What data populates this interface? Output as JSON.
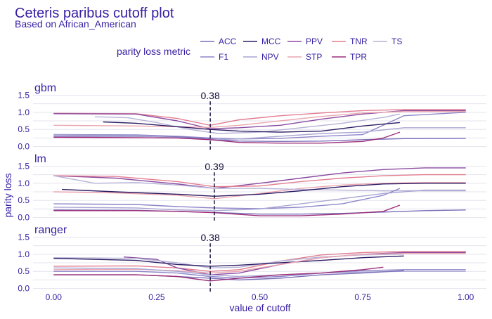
{
  "title": "Ceteris paribus cutoff plot",
  "subtitle": "Based on African_American",
  "chart_data": {
    "type": "line",
    "title": "Ceteris paribus cutoff plot",
    "subtitle": "Based on African_American",
    "xlabel": "value of cutoff",
    "ylabel": "parity loss",
    "xlim": [
      -0.05,
      1.05
    ],
    "ylim": [
      -0.05,
      1.55
    ],
    "x_ticks": [
      "0.00",
      "0.25",
      "0.50",
      "0.75",
      "1.00"
    ],
    "y_ticks": [
      "0.0",
      "0.5",
      "1.0",
      "1.5"
    ],
    "legend": {
      "title": "parity loss metric",
      "placement": "top",
      "entries": [
        "ACC",
        "MCC",
        "PPV",
        "TNR",
        "TS",
        "F1",
        "NPV",
        "STP",
        "TPR"
      ]
    },
    "grid": true,
    "metric_colors": {
      "ACC": "#7a6fb8",
      "MCC": "#2b1b63",
      "PPV": "#8a4aa0",
      "TNR": "#e27d90",
      "TS": "#b5b3d6",
      "F1": "#8d85c9",
      "NPV": "#a9a6d3",
      "STP": "#eba6b0",
      "TPR": "#9e2f7a"
    },
    "panels": [
      {
        "name": "gbm",
        "cutoff_label": "0.38",
        "cutoff": 0.38,
        "series": [
          {
            "name": "TNR",
            "x": [
              0,
              0.2,
              0.3,
              0.38,
              0.45,
              0.55,
              0.65,
              0.75,
              0.85,
              1.0
            ],
            "values": [
              0.97,
              0.96,
              0.82,
              0.62,
              0.78,
              0.9,
              0.98,
              1.05,
              1.08,
              1.08
            ]
          },
          {
            "name": "PPV",
            "x": [
              0,
              0.2,
              0.3,
              0.38,
              0.45,
              0.55,
              0.65,
              0.75,
              0.85,
              1.0
            ],
            "values": [
              0.96,
              0.95,
              0.75,
              0.52,
              0.55,
              0.62,
              0.8,
              0.95,
              1.05,
              1.05
            ]
          },
          {
            "name": "STP",
            "x": [
              0,
              0.2,
              0.3,
              0.38,
              0.45,
              0.55,
              0.65,
              0.75,
              0.85,
              1.0
            ],
            "values": [
              0.62,
              0.6,
              0.58,
              0.56,
              0.62,
              0.75,
              0.88,
              0.98,
              1.02,
              1.02
            ]
          },
          {
            "name": "F1",
            "x": [
              0,
              0.2,
              0.3,
              0.38,
              0.45,
              0.55,
              0.65,
              0.75,
              0.85,
              1.0
            ],
            "values": [
              0.35,
              0.34,
              0.3,
              0.25,
              0.22,
              0.24,
              0.3,
              0.35,
              0.9,
              1.0
            ]
          },
          {
            "name": "TS",
            "x": [
              0.1,
              0.18,
              0.25,
              0.33,
              0.4,
              0.5,
              0.6,
              0.7,
              0.8,
              0.84
            ],
            "values": [
              0.87,
              0.84,
              0.7,
              0.5,
              0.38,
              0.42,
              0.55,
              0.68,
              0.85,
              0.95
            ]
          },
          {
            "name": "MCC",
            "x": [
              0.12,
              0.2,
              0.3,
              0.38,
              0.45,
              0.55,
              0.65,
              0.75,
              0.84
            ],
            "values": [
              0.72,
              0.68,
              0.58,
              0.5,
              0.45,
              0.42,
              0.45,
              0.6,
              0.7
            ]
          },
          {
            "name": "ACC",
            "x": [
              0,
              0.2,
              0.3,
              0.38,
              0.45,
              0.55,
              0.65,
              0.75,
              0.85,
              1.0
            ],
            "values": [
              0.3,
              0.3,
              0.28,
              0.22,
              0.16,
              0.15,
              0.16,
              0.2,
              0.23,
              0.24
            ]
          },
          {
            "name": "NPV",
            "x": [
              0,
              0.2,
              0.3,
              0.38,
              0.45,
              0.55,
              0.65,
              0.75,
              0.85,
              1.0
            ],
            "values": [
              0.34,
              0.32,
              0.26,
              0.2,
              0.22,
              0.3,
              0.38,
              0.42,
              0.55,
              0.55
            ]
          },
          {
            "name": "TPR",
            "x": [
              0,
              0.2,
              0.3,
              0.38,
              0.45,
              0.55,
              0.65,
              0.75,
              0.8,
              0.84
            ],
            "values": [
              0.27,
              0.26,
              0.25,
              0.2,
              0.12,
              0.1,
              0.1,
              0.15,
              0.25,
              0.42
            ]
          }
        ]
      },
      {
        "name": "lm",
        "cutoff_label": "0.39",
        "cutoff": 0.39,
        "series": [
          {
            "name": "PPV",
            "x": [
              0,
              0.15,
              0.3,
              0.39,
              0.5,
              0.6,
              0.7,
              0.8,
              0.9,
              1.0
            ],
            "values": [
              1.22,
              1.15,
              0.98,
              0.85,
              1.0,
              1.15,
              1.3,
              1.4,
              1.45,
              1.45
            ]
          },
          {
            "name": "TNR",
            "x": [
              0,
              0.15,
              0.3,
              0.39,
              0.5,
              0.6,
              0.7,
              0.8,
              0.9,
              1.0
            ],
            "values": [
              1.22,
              1.2,
              1.05,
              0.9,
              0.92,
              1.05,
              1.15,
              1.22,
              1.25,
              1.25
            ]
          },
          {
            "name": "STP",
            "x": [
              0,
              0.15,
              0.3,
              0.39,
              0.5,
              0.6,
              0.7,
              0.8,
              0.9,
              1.0
            ],
            "values": [
              0.75,
              0.72,
              0.65,
              0.55,
              0.7,
              0.85,
              0.95,
              1.0,
              1.02,
              1.02
            ]
          },
          {
            "name": "TS",
            "x": [
              0,
              0.1,
              0.2,
              0.3,
              0.39,
              0.5,
              0.6,
              0.7,
              0.8,
              1.0
            ],
            "values": [
              1.22,
              1.0,
              1.02,
              0.95,
              0.85,
              0.85,
              0.82,
              0.8,
              0.78,
              0.78
            ]
          },
          {
            "name": "MCC",
            "x": [
              0.02,
              0.15,
              0.3,
              0.39,
              0.5,
              0.6,
              0.7,
              0.8,
              0.9,
              1.0
            ],
            "values": [
              0.82,
              0.75,
              0.68,
              0.62,
              0.68,
              0.78,
              0.9,
              0.98,
              1.0,
              1.0
            ]
          },
          {
            "name": "F1",
            "x": [
              0,
              0.2,
              0.3,
              0.39,
              0.5,
              0.6,
              0.7,
              0.8,
              0.84
            ],
            "values": [
              0.4,
              0.38,
              0.32,
              0.28,
              0.26,
              0.3,
              0.4,
              0.65,
              0.85
            ]
          },
          {
            "name": "NPV",
            "x": [
              0,
              0.2,
              0.3,
              0.39,
              0.5,
              0.6,
              0.7,
              0.8,
              0.9,
              1.0
            ],
            "values": [
              0.3,
              0.28,
              0.22,
              0.2,
              0.25,
              0.4,
              0.55,
              0.7,
              0.8,
              0.8
            ]
          },
          {
            "name": "ACC",
            "x": [
              0,
              0.2,
              0.3,
              0.39,
              0.5,
              0.6,
              0.7,
              0.8,
              0.9,
              1.0
            ],
            "values": [
              0.22,
              0.21,
              0.18,
              0.15,
              0.1,
              0.1,
              0.12,
              0.16,
              0.2,
              0.22
            ]
          },
          {
            "name": "TPR",
            "x": [
              0,
              0.2,
              0.3,
              0.39,
              0.5,
              0.6,
              0.7,
              0.8,
              0.84
            ],
            "values": [
              0.2,
              0.2,
              0.18,
              0.14,
              0.05,
              0.05,
              0.1,
              0.18,
              0.36
            ]
          }
        ]
      },
      {
        "name": "ranger",
        "cutoff_label": "0.38",
        "cutoff": 0.38,
        "series": [
          {
            "name": "TNR",
            "x": [
              0,
              0.2,
              0.3,
              0.38,
              0.45,
              0.55,
              0.65,
              0.75,
              0.85,
              1.0
            ],
            "values": [
              0.65,
              0.66,
              0.6,
              0.5,
              0.55,
              0.8,
              0.98,
              1.05,
              1.08,
              1.08
            ]
          },
          {
            "name": "PPV",
            "x": [
              0.17,
              0.25,
              0.3,
              0.38,
              0.45,
              0.55,
              0.65,
              0.75,
              0.85,
              1.0
            ],
            "values": [
              0.92,
              0.85,
              0.6,
              0.4,
              0.45,
              0.7,
              0.9,
              1.0,
              1.05,
              1.05
            ]
          },
          {
            "name": "TS",
            "x": [
              0,
              0.2,
              0.3,
              0.38,
              0.45,
              0.55,
              0.65,
              0.75,
              0.85
            ],
            "values": [
              0.9,
              0.88,
              0.75,
              0.6,
              0.62,
              0.8,
              0.92,
              0.98,
              1.0
            ]
          },
          {
            "name": "MCC",
            "x": [
              0,
              0.2,
              0.3,
              0.38,
              0.45,
              0.55,
              0.65,
              0.75,
              0.85
            ],
            "values": [
              0.88,
              0.82,
              0.7,
              0.65,
              0.68,
              0.75,
              0.82,
              0.9,
              0.95
            ]
          },
          {
            "name": "STP",
            "x": [
              0,
              0.2,
              0.3,
              0.38,
              0.45,
              0.55,
              0.65,
              0.75,
              0.85,
              1.0
            ],
            "values": [
              0.55,
              0.56,
              0.52,
              0.45,
              0.5,
              0.7,
              0.9,
              1.0,
              1.02,
              1.02
            ]
          },
          {
            "name": "F1",
            "x": [
              0,
              0.2,
              0.3,
              0.38,
              0.45,
              0.55,
              0.65,
              0.75,
              0.85,
              1.0
            ],
            "values": [
              0.5,
              0.5,
              0.45,
              0.35,
              0.3,
              0.35,
              0.45,
              0.52,
              0.55,
              0.55
            ]
          },
          {
            "name": "NPV",
            "x": [
              0,
              0.2,
              0.3,
              0.38,
              0.45,
              0.55,
              0.65,
              0.75,
              0.85,
              1.0
            ],
            "values": [
              0.6,
              0.58,
              0.5,
              0.4,
              0.35,
              0.4,
              0.45,
              0.48,
              0.5,
              0.5
            ]
          },
          {
            "name": "ACC",
            "x": [
              0,
              0.2,
              0.3,
              0.38,
              0.45,
              0.55,
              0.65,
              0.75,
              0.85
            ],
            "values": [
              0.4,
              0.4,
              0.35,
              0.3,
              0.25,
              0.3,
              0.4,
              0.45,
              0.52
            ]
          },
          {
            "name": "TPR",
            "x": [
              0,
              0.2,
              0.3,
              0.38,
              0.45,
              0.55,
              0.65,
              0.75,
              0.8
            ],
            "values": [
              0.4,
              0.4,
              0.35,
              0.22,
              0.3,
              0.4,
              0.45,
              0.55,
              0.62
            ]
          }
        ]
      }
    ]
  }
}
